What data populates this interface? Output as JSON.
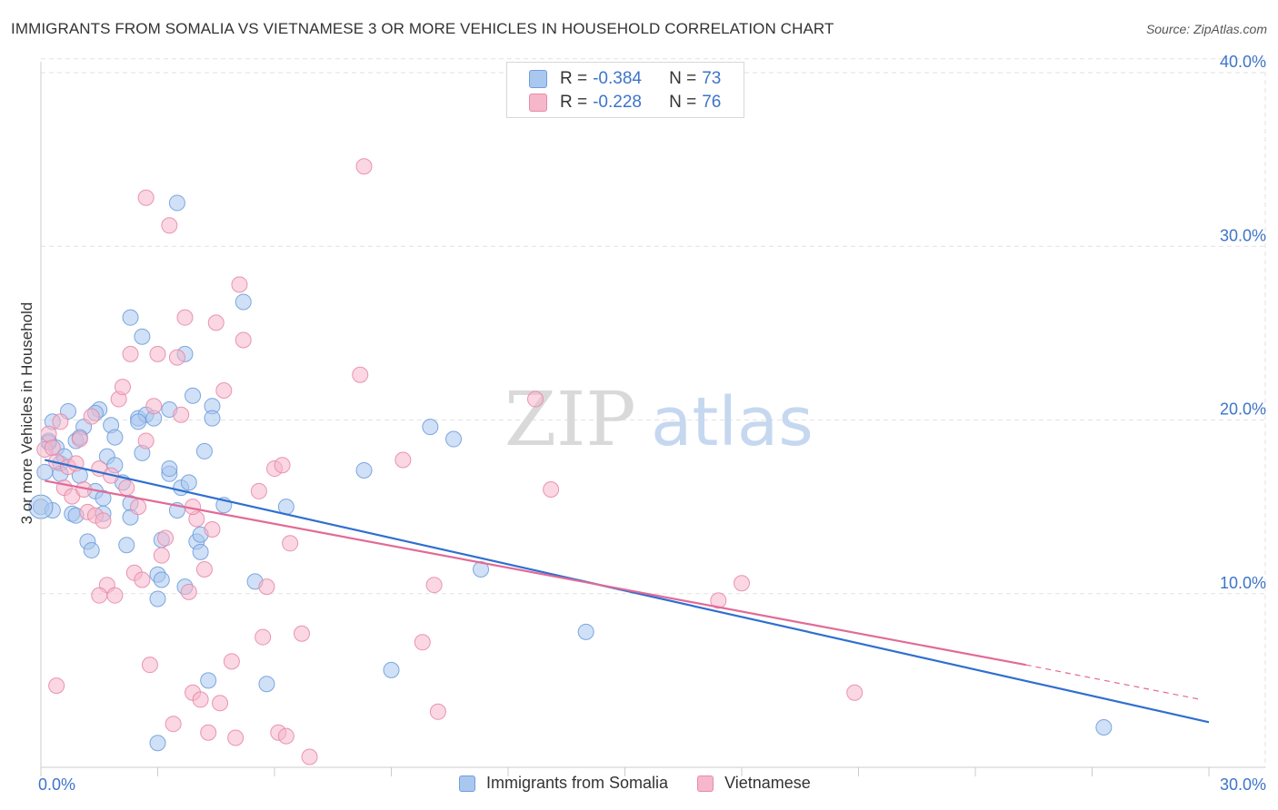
{
  "chart_data": {
    "type": "scatter",
    "title": "IMMIGRANTS FROM SOMALIA VS VIETNAMESE 3 OR MORE VEHICLES IN HOUSEHOLD CORRELATION CHART",
    "source": "Source: ZipAtlas.com",
    "watermark": {
      "zip": "ZIP",
      "atlas": "atlas"
    },
    "xlabel": "",
    "ylabel": "3 or more Vehicles in Household",
    "xlim": [
      0,
      30
    ],
    "ylim": [
      0,
      40
    ],
    "x_tick_labels": [
      "0.0%",
      "30.0%"
    ],
    "y_ticks": [
      10,
      20,
      30,
      40
    ],
    "y_tick_labels": [
      "10.0%",
      "20.0%",
      "30.0%",
      "40.0%"
    ],
    "grid": true,
    "legend_position": "top-center",
    "colors": {
      "somalia_fill": "#a9c7ef",
      "somalia_stroke": "#6f9fdd",
      "somalia_line": "#2f6fd0",
      "vietnamese_fill": "#f6b7cb",
      "vietnamese_stroke": "#e88aa9",
      "vietnamese_line": "#e26a96",
      "tick_text": "#3d74c9",
      "grid": "#e2e2e2"
    },
    "stats": [
      {
        "r_label": "R =",
        "r_value": "-0.384",
        "n_label": "N =",
        "n_value": "73"
      },
      {
        "r_label": "R =",
        "r_value": "-0.228",
        "n_label": "N =",
        "n_value": "76"
      }
    ],
    "series": [
      {
        "name": "Immigrants from Somalia",
        "trend": {
          "x": [
            0.1,
            30.0
          ],
          "y": [
            17.7,
            2.6
          ]
        },
        "points": [
          [
            0.0,
            15.0
          ],
          [
            0.1,
            17.0
          ],
          [
            0.2,
            18.8
          ],
          [
            0.3,
            19.9
          ],
          [
            0.4,
            18.4
          ],
          [
            0.5,
            17.5
          ],
          [
            0.6,
            17.9
          ],
          [
            0.3,
            14.8
          ],
          [
            0.8,
            14.6
          ],
          [
            0.7,
            20.5
          ],
          [
            0.9,
            18.8
          ],
          [
            1.0,
            16.8
          ],
          [
            1.1,
            19.6
          ],
          [
            1.0,
            19.0
          ],
          [
            1.2,
            13.0
          ],
          [
            1.3,
            12.5
          ],
          [
            1.4,
            15.9
          ],
          [
            1.5,
            20.6
          ],
          [
            1.6,
            15.5
          ],
          [
            1.7,
            17.9
          ],
          [
            1.8,
            19.7
          ],
          [
            1.6,
            14.6
          ],
          [
            1.9,
            19.0
          ],
          [
            1.9,
            17.4
          ],
          [
            2.1,
            16.4
          ],
          [
            2.2,
            12.8
          ],
          [
            2.3,
            15.2
          ],
          [
            2.3,
            14.4
          ],
          [
            2.3,
            25.9
          ],
          [
            2.6,
            24.8
          ],
          [
            2.5,
            20.1
          ],
          [
            2.6,
            18.1
          ],
          [
            2.7,
            20.3
          ],
          [
            2.9,
            20.1
          ],
          [
            3.0,
            11.1
          ],
          [
            3.1,
            10.8
          ],
          [
            3.0,
            9.7
          ],
          [
            3.1,
            13.1
          ],
          [
            3.3,
            20.6
          ],
          [
            3.3,
            16.9
          ],
          [
            3.3,
            17.2
          ],
          [
            3.5,
            14.8
          ],
          [
            3.6,
            16.1
          ],
          [
            3.7,
            10.4
          ],
          [
            3.7,
            23.8
          ],
          [
            3.8,
            16.4
          ],
          [
            3.9,
            21.4
          ],
          [
            4.0,
            13.0
          ],
          [
            4.1,
            12.4
          ],
          [
            4.1,
            13.4
          ],
          [
            4.2,
            18.2
          ],
          [
            4.4,
            20.8
          ],
          [
            4.4,
            20.1
          ],
          [
            3.5,
            32.5
          ],
          [
            3.0,
            1.4
          ],
          [
            4.3,
            5.0
          ],
          [
            4.7,
            15.1
          ],
          [
            5.2,
            26.8
          ],
          [
            5.5,
            10.7
          ],
          [
            5.8,
            4.8
          ],
          [
            6.3,
            15.0
          ],
          [
            8.3,
            17.1
          ],
          [
            9.0,
            5.6
          ],
          [
            10.0,
            19.6
          ],
          [
            10.6,
            18.9
          ],
          [
            11.3,
            11.4
          ],
          [
            14.0,
            7.8
          ],
          [
            27.3,
            2.3
          ],
          [
            0.2,
            18.7
          ],
          [
            0.5,
            16.9
          ],
          [
            1.4,
            20.4
          ],
          [
            2.5,
            19.9
          ],
          [
            0.9,
            14.5
          ]
        ]
      },
      {
        "name": "Vietnamese",
        "trend": {
          "x": [
            0.1,
            25.3
          ],
          "y": [
            16.5,
            5.9
          ]
        },
        "trend_dashed": {
          "x": [
            25.3,
            29.8
          ],
          "y": [
            5.9,
            3.9
          ]
        },
        "points": [
          [
            0.1,
            18.3
          ],
          [
            0.2,
            19.2
          ],
          [
            0.3,
            18.4
          ],
          [
            0.4,
            17.6
          ],
          [
            0.5,
            19.9
          ],
          [
            0.6,
            16.1
          ],
          [
            0.7,
            17.3
          ],
          [
            0.8,
            15.6
          ],
          [
            0.9,
            17.5
          ],
          [
            1.0,
            18.9
          ],
          [
            1.2,
            14.7
          ],
          [
            1.3,
            20.2
          ],
          [
            1.4,
            14.5
          ],
          [
            1.5,
            17.2
          ],
          [
            1.6,
            14.2
          ],
          [
            1.7,
            10.5
          ],
          [
            1.8,
            16.8
          ],
          [
            1.9,
            9.9
          ],
          [
            2.0,
            21.2
          ],
          [
            2.1,
            21.9
          ],
          [
            2.2,
            16.1
          ],
          [
            2.3,
            23.8
          ],
          [
            2.4,
            11.2
          ],
          [
            2.5,
            15.0
          ],
          [
            2.6,
            10.8
          ],
          [
            2.7,
            18.8
          ],
          [
            2.8,
            5.9
          ],
          [
            2.9,
            20.8
          ],
          [
            3.0,
            23.8
          ],
          [
            3.1,
            12.2
          ],
          [
            3.2,
            13.2
          ],
          [
            3.3,
            31.2
          ],
          [
            3.4,
            2.5
          ],
          [
            3.5,
            23.6
          ],
          [
            3.6,
            20.3
          ],
          [
            3.7,
            25.9
          ],
          [
            3.8,
            10.1
          ],
          [
            3.9,
            4.3
          ],
          [
            4.0,
            14.3
          ],
          [
            4.1,
            3.9
          ],
          [
            4.2,
            11.4
          ],
          [
            4.3,
            2.0
          ],
          [
            4.4,
            13.7
          ],
          [
            4.5,
            25.6
          ],
          [
            4.6,
            3.7
          ],
          [
            4.7,
            21.7
          ],
          [
            4.9,
            6.1
          ],
          [
            5.0,
            1.7
          ],
          [
            5.1,
            27.8
          ],
          [
            5.2,
            24.6
          ],
          [
            5.6,
            15.9
          ],
          [
            5.7,
            7.5
          ],
          [
            5.8,
            10.4
          ],
          [
            6.0,
            17.2
          ],
          [
            6.1,
            2.0
          ],
          [
            6.2,
            17.4
          ],
          [
            6.3,
            1.8
          ],
          [
            6.4,
            12.9
          ],
          [
            6.7,
            7.7
          ],
          [
            6.9,
            0.6
          ],
          [
            8.2,
            22.6
          ],
          [
            8.3,
            34.6
          ],
          [
            9.3,
            17.7
          ],
          [
            9.8,
            7.2
          ],
          [
            10.1,
            10.5
          ],
          [
            10.2,
            3.2
          ],
          [
            12.7,
            21.2
          ],
          [
            13.1,
            16.0
          ],
          [
            17.4,
            9.6
          ],
          [
            18.0,
            10.6
          ],
          [
            20.9,
            4.3
          ],
          [
            0.4,
            4.7
          ],
          [
            2.7,
            32.8
          ],
          [
            1.1,
            16.0
          ],
          [
            3.9,
            15.0
          ],
          [
            1.5,
            9.9
          ]
        ]
      }
    ]
  }
}
